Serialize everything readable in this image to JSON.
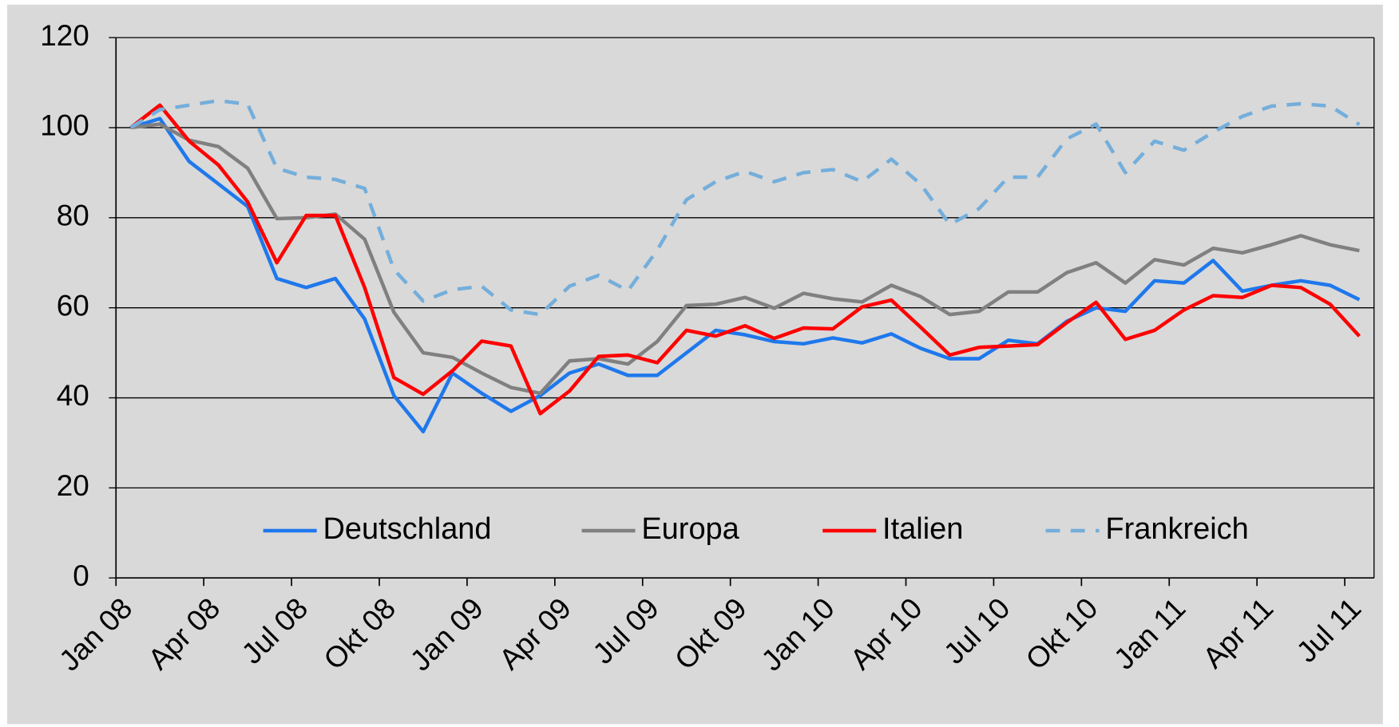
{
  "chart_data": {
    "type": "line",
    "categories": [
      "Jan 08",
      null,
      null,
      "Apr 08",
      null,
      null,
      "Jul 08",
      null,
      null,
      "Okt 08",
      null,
      null,
      "Jan 09",
      null,
      null,
      "Apr 09",
      null,
      null,
      "Jul 09",
      null,
      null,
      "Okt 09",
      null,
      null,
      "Jan 10",
      null,
      null,
      "Apr 10",
      null,
      null,
      "Jul 10",
      null,
      null,
      "Okt 10",
      null,
      null,
      "Jan 11",
      null,
      null,
      "Apr 11",
      null,
      null,
      "Jul 11"
    ],
    "series": [
      {
        "name": "Deutschland",
        "color": "#1f78ec",
        "dashed": false,
        "values": [
          100,
          102,
          92.5,
          87.5,
          82.5,
          66.5,
          64.5,
          66.5,
          57.5,
          40.5,
          32.5,
          45.5,
          41,
          37,
          40.5,
          45.5,
          47.5,
          45,
          45,
          50,
          55,
          54,
          52.5,
          52,
          53.3,
          52.2,
          54.2,
          51,
          48.7,
          48.7,
          52.8,
          52,
          57,
          60,
          59.2,
          66,
          65.5,
          70.5,
          63.7,
          65,
          66,
          65,
          61.8
        ]
      },
      {
        "name": "Europa",
        "color": "#808080",
        "dashed": false,
        "values": [
          100,
          100.8,
          97.2,
          95.8,
          91,
          79.8,
          80,
          80.8,
          75.2,
          59,
          50,
          49,
          45.5,
          42.3,
          41,
          48.2,
          48.7,
          47.5,
          52.5,
          60.5,
          60.8,
          62.3,
          59.9,
          63.2,
          62,
          61.3,
          65,
          62.5,
          58.5,
          59.2,
          63.5,
          63.5,
          67.8,
          70,
          65.5,
          70.7,
          69.5,
          73.2,
          72.2,
          74,
          76,
          74,
          72.7
        ]
      },
      {
        "name": "Italien",
        "color": "#ff0000",
        "dashed": false,
        "values": [
          100,
          105,
          97,
          91.7,
          83.5,
          70,
          80.5,
          80.5,
          64.5,
          44.5,
          40.8,
          46,
          52.6,
          51.5,
          36.5,
          41.5,
          49.2,
          49.5,
          47.8,
          55,
          53.7,
          56,
          53.2,
          55.5,
          55.3,
          60.2,
          61.7,
          55.7,
          49.5,
          51.2,
          51.5,
          51.8,
          56.7,
          61.2,
          53,
          55,
          59.5,
          62.7,
          62.3,
          65,
          64.5,
          60.8,
          53.7
        ]
      },
      {
        "name": "Frankreich",
        "color": "#74aedb",
        "dashed": true,
        "values": [
          100,
          104,
          105,
          106,
          105.2,
          91,
          89,
          88.5,
          86.5,
          68.5,
          61.5,
          64,
          64.8,
          59.5,
          58.5,
          64.8,
          67.2,
          63.8,
          72.8,
          84,
          88,
          90.3,
          88,
          90,
          90.7,
          88,
          93,
          87.5,
          78.5,
          82,
          89,
          89,
          97.5,
          100.8,
          90,
          97,
          95,
          99,
          102.5,
          104.8,
          105.3,
          104.8,
          100.7
        ]
      }
    ],
    "ylim": [
      0,
      120
    ],
    "yticks": [
      0,
      20,
      40,
      60,
      80,
      100,
      120
    ],
    "grid": true,
    "legend": "lower center"
  }
}
